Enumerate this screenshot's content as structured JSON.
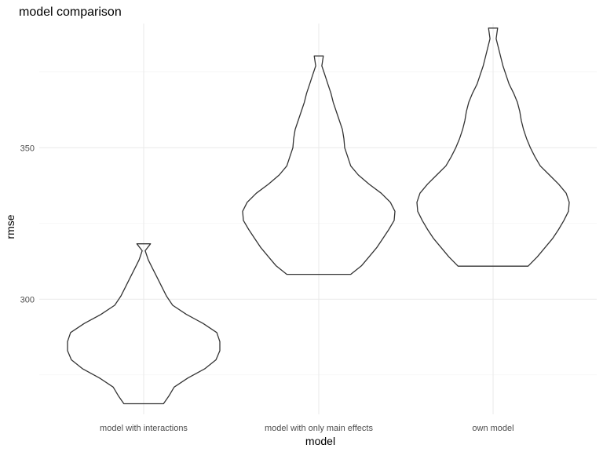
{
  "chart_data": {
    "type": "violin",
    "title": "model comparison",
    "xlabel": "model",
    "ylabel": "rmse",
    "categories": [
      "model with interactions",
      "model with only main effects",
      "own model"
    ],
    "yticks": [
      300,
      350
    ],
    "yminor": [
      275,
      325,
      375
    ],
    "ylim": [
      262,
      391
    ],
    "grid": true,
    "violins": [
      {
        "category": "model with interactions",
        "min": 265.5,
        "max": 318.3,
        "profile": [
          [
            265.5,
            0.26
          ],
          [
            268,
            0.33
          ],
          [
            271,
            0.4
          ],
          [
            274,
            0.58
          ],
          [
            277,
            0.8
          ],
          [
            280,
            0.95
          ],
          [
            283,
            1.0
          ],
          [
            286,
            1.0
          ],
          [
            289,
            0.96
          ],
          [
            292,
            0.78
          ],
          [
            295,
            0.56
          ],
          [
            298,
            0.38
          ],
          [
            301,
            0.3
          ],
          [
            304,
            0.24
          ],
          [
            307,
            0.18
          ],
          [
            310,
            0.12
          ],
          [
            313,
            0.06
          ],
          [
            316,
            0.02
          ],
          [
            318.3,
            0.09
          ]
        ]
      },
      {
        "category": "model with only main effects",
        "min": 308.2,
        "max": 380.3,
        "profile": [
          [
            308.2,
            0.42
          ],
          [
            311,
            0.56
          ],
          [
            314,
            0.66
          ],
          [
            317,
            0.76
          ],
          [
            320,
            0.84
          ],
          [
            323,
            0.92
          ],
          [
            326,
            0.99
          ],
          [
            329,
            1.0
          ],
          [
            332,
            0.94
          ],
          [
            335,
            0.82
          ],
          [
            338,
            0.66
          ],
          [
            341,
            0.52
          ],
          [
            344,
            0.42
          ],
          [
            347,
            0.38
          ],
          [
            350,
            0.34
          ],
          [
            353,
            0.33
          ],
          [
            356,
            0.31
          ],
          [
            359,
            0.27
          ],
          [
            362,
            0.23
          ],
          [
            365,
            0.19
          ],
          [
            368,
            0.16
          ],
          [
            371,
            0.12
          ],
          [
            374,
            0.08
          ],
          [
            377,
            0.04
          ],
          [
            380.3,
            0.06
          ]
        ]
      },
      {
        "category": "own model",
        "min": 310.9,
        "max": 389.5,
        "profile": [
          [
            310.9,
            0.46
          ],
          [
            314,
            0.58
          ],
          [
            317,
            0.68
          ],
          [
            320,
            0.78
          ],
          [
            323,
            0.86
          ],
          [
            326,
            0.93
          ],
          [
            329,
            0.99
          ],
          [
            332,
            1.0
          ],
          [
            335,
            0.96
          ],
          [
            338,
            0.86
          ],
          [
            341,
            0.74
          ],
          [
            344,
            0.62
          ],
          [
            347,
            0.55
          ],
          [
            350,
            0.49
          ],
          [
            353,
            0.44
          ],
          [
            356,
            0.4
          ],
          [
            359,
            0.37
          ],
          [
            362,
            0.35
          ],
          [
            365,
            0.32
          ],
          [
            368,
            0.27
          ],
          [
            371,
            0.21
          ],
          [
            374,
            0.17
          ],
          [
            377,
            0.13
          ],
          [
            380,
            0.1
          ],
          [
            383,
            0.07
          ],
          [
            386,
            0.04
          ],
          [
            389.5,
            0.06
          ]
        ]
      }
    ]
  }
}
